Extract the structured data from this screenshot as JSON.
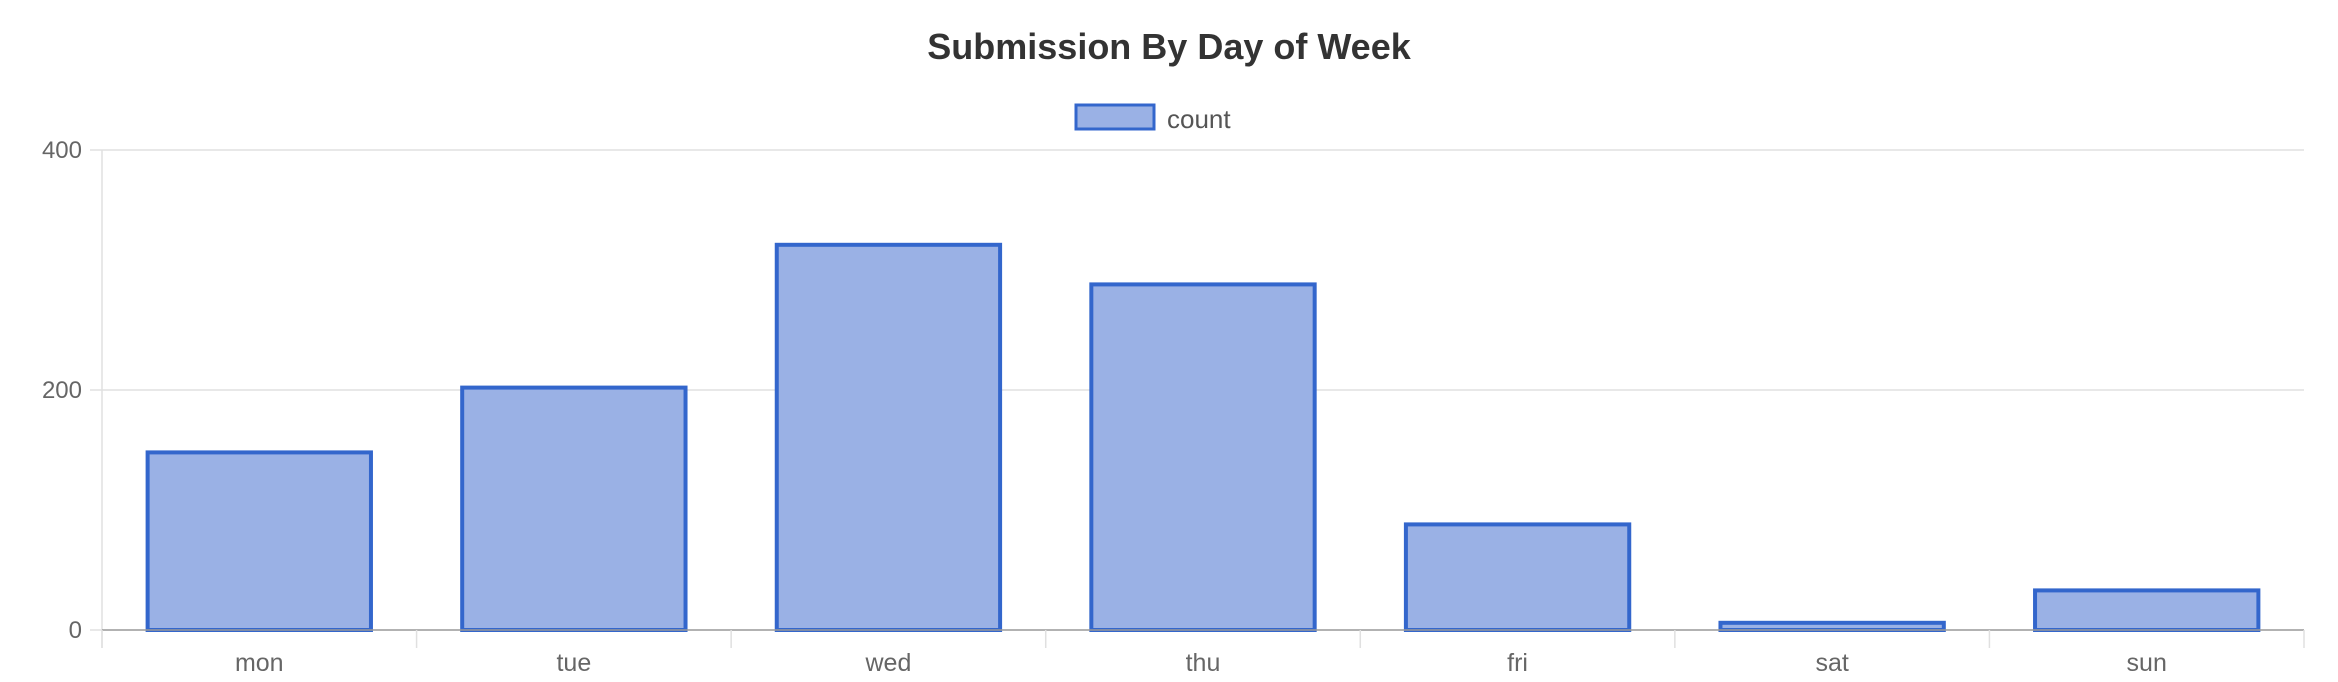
{
  "chart_data": {
    "type": "bar",
    "title": "Submission By Day of Week",
    "categories": [
      "mon",
      "tue",
      "wed",
      "thu",
      "fri",
      "sat",
      "sun"
    ],
    "series": [
      {
        "name": "count",
        "values": [
          148,
          202,
          321,
          288,
          88,
          6,
          33
        ]
      }
    ],
    "xlabel": "",
    "ylabel": "",
    "ylim": [
      0,
      400
    ],
    "yticks": [
      "0",
      "200",
      "400"
    ],
    "grid": true,
    "legend_position": "top-center",
    "colors": {
      "bar_fill": "#9ab1e5",
      "bar_border": "#3366cc",
      "grid": "#e0e0e0",
      "axis": "#999999",
      "text": "#666666",
      "title": "#333333"
    }
  }
}
